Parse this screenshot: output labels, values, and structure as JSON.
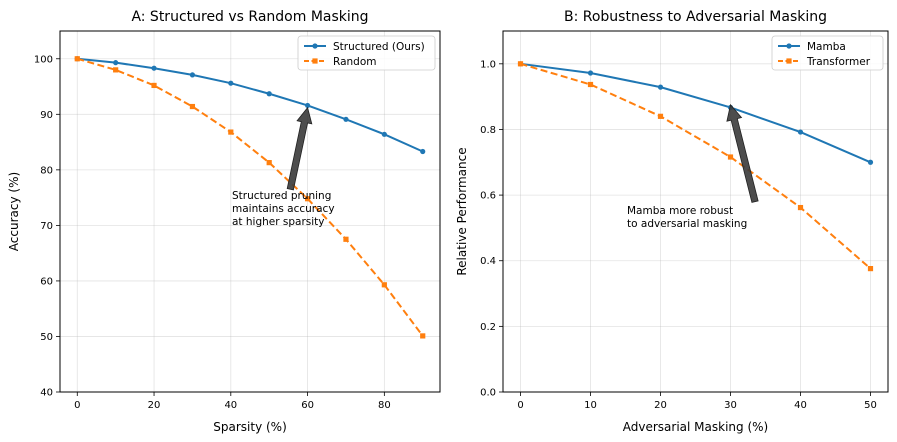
{
  "chart_data": [
    {
      "type": "line",
      "title": "A: Structured vs Random Masking",
      "xlabel": "Sparsity (%)",
      "ylabel": "Accuracy (%)",
      "xlim": [
        -4.5,
        94.5
      ],
      "ylim": [
        40,
        105
      ],
      "xticks": [
        0,
        20,
        40,
        60,
        80
      ],
      "yticks": [
        40,
        50,
        60,
        70,
        80,
        90,
        100
      ],
      "grid": true,
      "legend_position": "top-right",
      "x": [
        0,
        10,
        20,
        30,
        40,
        50,
        60,
        70,
        80,
        90
      ],
      "series": [
        {
          "name": "Structured (Ours)",
          "color": "#1f77b4",
          "marker": "circle",
          "linestyle": "solid",
          "values": [
            100.0,
            99.3,
            98.3,
            97.1,
            95.6,
            93.7,
            91.6,
            89.1,
            86.4,
            83.3
          ]
        },
        {
          "name": "Random",
          "color": "#ff7f0e",
          "marker": "square",
          "linestyle": "dashed",
          "values": [
            100.0,
            98.0,
            95.2,
            91.4,
            86.8,
            81.3,
            74.8,
            67.5,
            59.3,
            50.1
          ]
        }
      ],
      "annotation": {
        "lines": [
          "Structured pruning",
          "maintains accuracy",
          "at higher sparsity"
        ],
        "arrow_tail": [
          55.5,
          76.5
        ],
        "arrow_head": [
          60,
          91.2
        ]
      }
    },
    {
      "type": "line",
      "title": "B: Robustness to Adversarial Masking",
      "xlabel": "Adversarial Masking (%)",
      "ylabel": "Relative Performance",
      "xlim": [
        -2.5,
        52.5
      ],
      "ylim": [
        0.0,
        1.1
      ],
      "xticks": [
        0,
        10,
        20,
        30,
        40,
        50
      ],
      "yticks": [
        0.0,
        0.2,
        0.4,
        0.6,
        0.8,
        1.0
      ],
      "grid": true,
      "legend_position": "top-right",
      "x": [
        0,
        10,
        20,
        30,
        40,
        50
      ],
      "series": [
        {
          "name": "Mamba",
          "color": "#1f77b4",
          "marker": "circle",
          "linestyle": "solid",
          "values": [
            1.0,
            0.972,
            0.929,
            0.867,
            0.792,
            0.7
          ]
        },
        {
          "name": "Transformer",
          "color": "#ff7f0e",
          "marker": "square",
          "linestyle": "dashed",
          "values": [
            1.0,
            0.937,
            0.84,
            0.716,
            0.562,
            0.376
          ]
        }
      ],
      "annotation": {
        "lines": [
          "Mamba more robust",
          "to adversarial masking"
        ],
        "arrow_tail": [
          33.5,
          0.58
        ],
        "arrow_head": [
          30,
          0.875
        ]
      }
    }
  ]
}
